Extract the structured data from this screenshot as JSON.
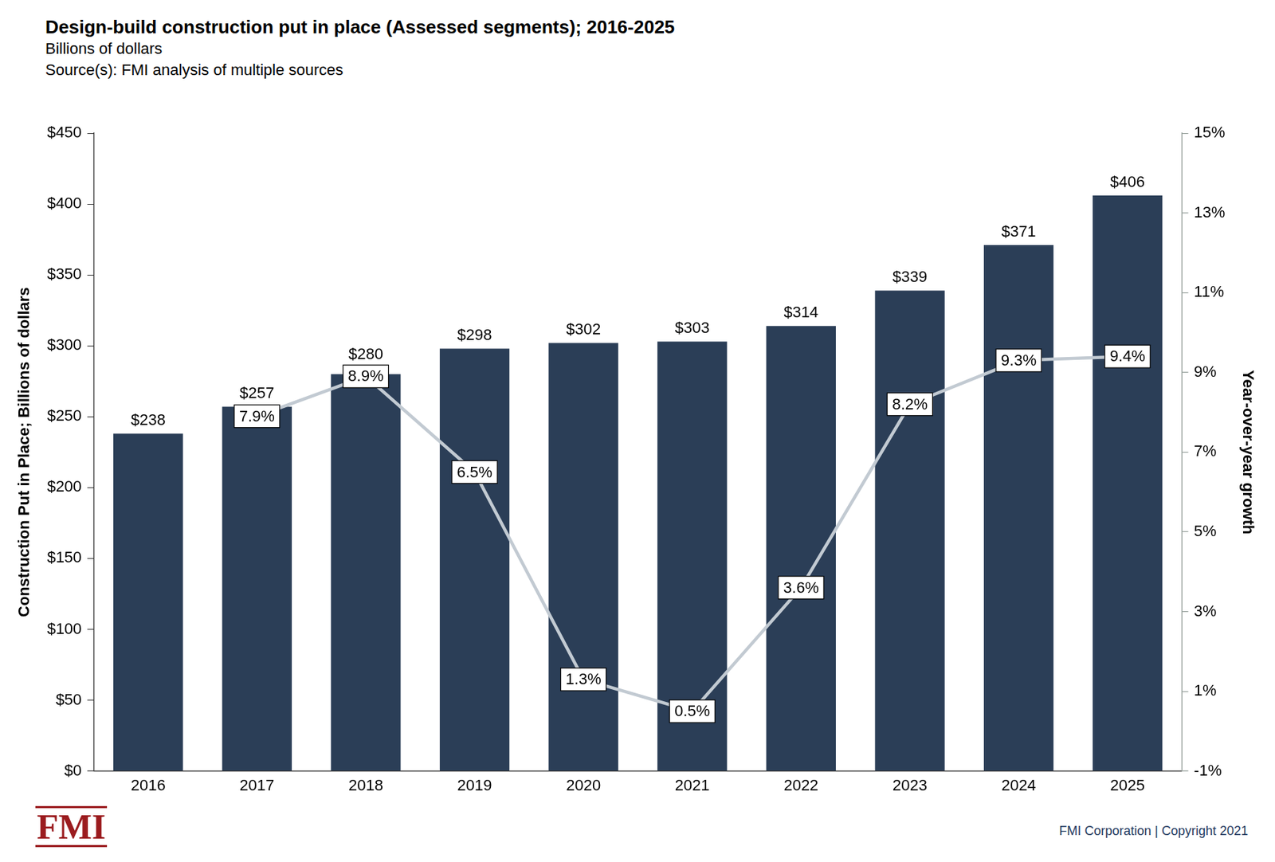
{
  "chart_data": {
    "type": "bar",
    "title": "Design-build construction put in place (Assessed segments); 2016-2025",
    "subtitle": [
      "Billions of dollars",
      "Source(s): FMI analysis of multiple sources"
    ],
    "annotations": [
      "FMI",
      "FMI Corporation | Copyright 2021"
    ],
    "ylabel": "Construction Put in Place; Billions of dollars",
    "y2label": "Year-over-year growth",
    "categories": [
      "2016",
      "2017",
      "2018",
      "2019",
      "2020",
      "2021",
      "2022",
      "2023",
      "2024",
      "2025"
    ],
    "series": [
      {
        "type": "bar",
        "color": "#2b3e57",
        "values": [
          238,
          257,
          280,
          298,
          302,
          303,
          314,
          339,
          371,
          406
        ],
        "value_labels": [
          "$238",
          "$257",
          "$280",
          "$298",
          "$302",
          "$303",
          "$314",
          "$339",
          "$371",
          "$406"
        ]
      },
      {
        "type": "line",
        "color": "#c2cad2",
        "axis": "y2",
        "values": [
          null,
          7.9,
          8.9,
          6.5,
          1.3,
          0.5,
          3.6,
          8.2,
          9.3,
          9.4
        ],
        "value_labels": [
          null,
          "7.9%",
          "8.9%",
          "6.5%",
          "1.3%",
          "0.5%",
          "3.6%",
          "8.2%",
          "9.3%",
          "9.4%"
        ]
      }
    ],
    "ylim": [
      0,
      450
    ],
    "yticks": [
      {
        "value": 0,
        "label": "$0"
      },
      {
        "value": 50,
        "label": "$50"
      },
      {
        "value": 100,
        "label": "$100"
      },
      {
        "value": 150,
        "label": "$150"
      },
      {
        "value": 200,
        "label": "$200"
      },
      {
        "value": 250,
        "label": "$250"
      },
      {
        "value": 300,
        "label": "$300"
      },
      {
        "value": 350,
        "label": "$350"
      },
      {
        "value": 400,
        "label": "$400"
      },
      {
        "value": 450,
        "label": "$450"
      }
    ],
    "y2lim": [
      -1,
      15
    ],
    "y2ticks": [
      {
        "value": -1,
        "label": "-1%"
      },
      {
        "value": 1,
        "label": "1%"
      },
      {
        "value": 3,
        "label": "3%"
      },
      {
        "value": 5,
        "label": "5%"
      },
      {
        "value": 7,
        "label": "7%"
      },
      {
        "value": 9,
        "label": "9%"
      },
      {
        "value": 11,
        "label": "11%"
      },
      {
        "value": 13,
        "label": "13%"
      },
      {
        "value": 15,
        "label": "15%"
      }
    ],
    "grid": false,
    "data_labels": true
  }
}
